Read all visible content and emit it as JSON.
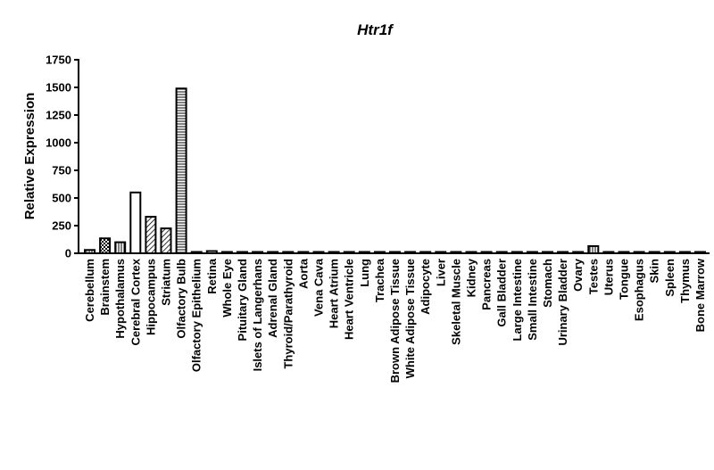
{
  "chart_data": {
    "type": "bar",
    "title": "Htr1f",
    "xlabel": "",
    "ylabel": "Relative Expression",
    "ylim": [
      0,
      1750
    ],
    "yticks": [
      0,
      250,
      500,
      750,
      1000,
      1250,
      1500,
      1750
    ],
    "grid": false,
    "legend": "none",
    "categories": [
      "Cerebellum",
      "Brainstem",
      "Hypothalamus",
      "Cerebral Cortex",
      "Hippocampus",
      "Striatum",
      "Olfactory Bulb",
      "Olfactory Epithelium",
      "Retina",
      "Whole Eye",
      "Pituitary Gland",
      "Islets of Langerhans",
      "Adrenal Gland",
      "Thyroid/Parathyroid",
      "Aorta",
      "Vena Cava",
      "Heart Atrium",
      "Heart Ventricle",
      "Lung",
      "Trachea",
      "Brown Adipose Tissue",
      "White Adipose Tissue",
      "Adipocyte",
      "Liver",
      "Skeletal Muscle",
      "Kidney",
      "Pancreas",
      "Gall Bladder",
      "Large Intestine",
      "Small Intestine",
      "Stomach",
      "Urinary Bladder",
      "Ovary",
      "Testes",
      "Uterus",
      "Tongue",
      "Esophagus",
      "Skin",
      "Spleen",
      "Thymus",
      "Bone Marrow"
    ],
    "values": [
      30,
      135,
      100,
      550,
      330,
      225,
      1490,
      3,
      20,
      8,
      2,
      1,
      1,
      1,
      1,
      1,
      1,
      1,
      1,
      1,
      1,
      1,
      1,
      1,
      1,
      1,
      1,
      1,
      1,
      4,
      1,
      1,
      1,
      65,
      1,
      1,
      1,
      1,
      1,
      1,
      2
    ],
    "patterns": [
      "stripe-v",
      "checker",
      "stripe-v",
      "solid-white",
      "stripe-diag",
      "stripe-diag",
      "stripe-h",
      "solid-white",
      "solid-white",
      "solid-white",
      "solid-white",
      "solid-white",
      "solid-white",
      "solid-white",
      "solid-white",
      "solid-white",
      "solid-white",
      "solid-white",
      "solid-white",
      "solid-white",
      "solid-white",
      "solid-white",
      "solid-white",
      "solid-white",
      "solid-white",
      "solid-white",
      "solid-white",
      "solid-white",
      "solid-white",
      "solid-white",
      "solid-white",
      "solid-white",
      "solid-white",
      "stripe-v",
      "solid-white",
      "solid-white",
      "solid-white",
      "solid-white",
      "solid-white",
      "solid-white",
      "solid-white"
    ],
    "colors": {
      "bar_stroke": "#000000",
      "bar_fill": "#ffffff",
      "axis": "#000000"
    }
  }
}
